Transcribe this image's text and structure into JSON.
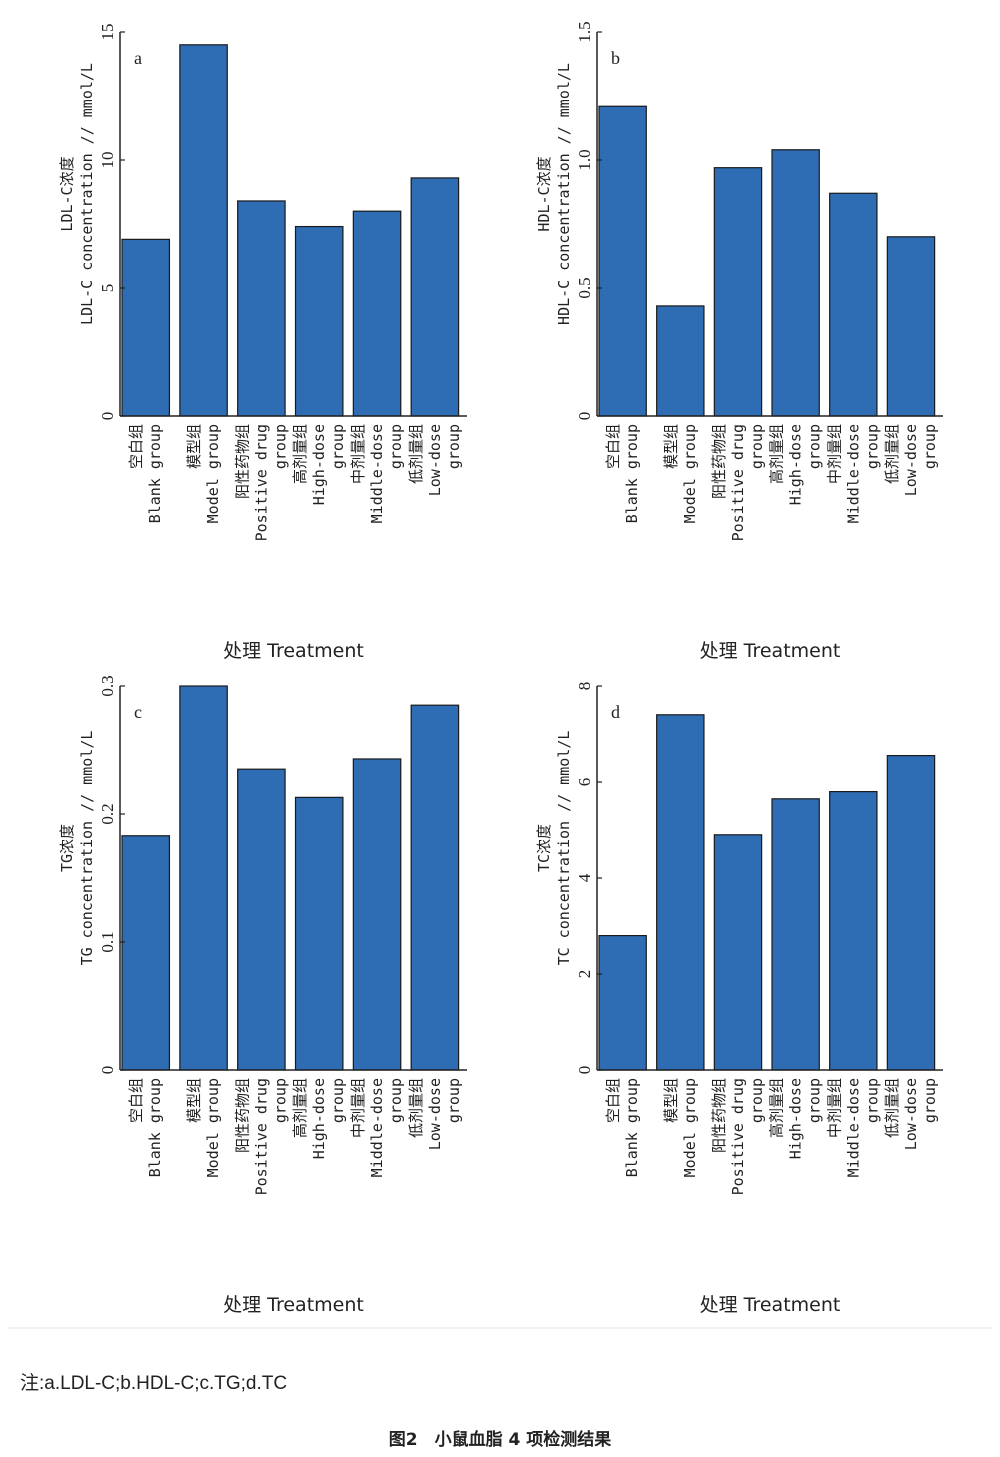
{
  "chart_data": [
    {
      "type": "bar",
      "panel_label": "a",
      "categories": [
        "空白组|Blank group",
        "模型组|Model group",
        "阳性药物组|Positive drug|group",
        "高剂量组|High-dose|group",
        "中剂量组|Middle-dose|group",
        "低剂量组|Low-dose|group"
      ],
      "values": [
        6.9,
        14.5,
        8.4,
        7.4,
        8.0,
        9.3
      ],
      "ylabel": [
        "LDL-C浓度",
        "LDL-C concentration // mmol/L"
      ],
      "xlabel": "处理 Treatment",
      "ylim": [
        0,
        15
      ],
      "yticks": [
        "0",
        "5",
        "10",
        "15"
      ],
      "ytick_values": [
        0,
        5,
        10,
        15
      ]
    },
    {
      "type": "bar",
      "panel_label": "b",
      "categories": [
        "空白组|Blank group",
        "模型组|Model group",
        "阳性药物组|Positive drug|group",
        "高剂量组|High-dose|group",
        "中剂量组|Middle-dose|group",
        "低剂量组|Low-dose|group"
      ],
      "values": [
        1.21,
        0.43,
        0.97,
        1.04,
        0.87,
        0.7
      ],
      "ylabel": [
        "HDL-C浓度",
        "HDL-C concentration // mmol/L"
      ],
      "xlabel": "处理 Treatment",
      "ylim": [
        0,
        1.5
      ],
      "yticks": [
        "0",
        "0.5",
        "1.0",
        "1.5"
      ],
      "ytick_values": [
        0,
        0.5,
        1.0,
        1.5
      ]
    },
    {
      "type": "bar",
      "panel_label": "c",
      "categories": [
        "空白组|Blank group",
        "模型组|Model group",
        "阳性药物组|Positive drug|group",
        "高剂量组|High-dose|group",
        "中剂量组|Middle-dose|group",
        "低剂量组|Low-dose|group"
      ],
      "values": [
        0.183,
        0.3,
        0.235,
        0.213,
        0.243,
        0.285
      ],
      "ylabel": [
        "TG浓度",
        "TG concentration // mmol/L"
      ],
      "xlabel": "处理 Treatment",
      "ylim": [
        0,
        0.3
      ],
      "yticks": [
        "0",
        "0.1",
        "0.2",
        "0.3"
      ],
      "ytick_values": [
        0,
        0.1,
        0.2,
        0.3
      ]
    },
    {
      "type": "bar",
      "panel_label": "d",
      "categories": [
        "空白组|Blank group",
        "模型组|Model group",
        "阳性药物组|Positive drug|group",
        "高剂量组|High-dose|group",
        "中剂量组|Middle-dose|group",
        "低剂量组|Low-dose|group"
      ],
      "values": [
        2.8,
        7.4,
        4.9,
        5.65,
        5.8,
        6.55
      ],
      "ylabel": [
        "TC浓度",
        "TC concentration // mmol/L"
      ],
      "xlabel": "处理 Treatment",
      "ylim": [
        0,
        8
      ],
      "yticks": [
        "0",
        "2",
        "4",
        "6",
        "8"
      ],
      "ytick_values": [
        0,
        2,
        4,
        6,
        8
      ]
    }
  ],
  "colors": {
    "bar": "#2e6db4",
    "bar_edge": "#1a1a1a",
    "axis": "#222222"
  },
  "note": "注:a.LDL-C;b.HDL-C;c.TG;d.TC",
  "caption": "图2　小鼠血脂 4 项检测结果"
}
